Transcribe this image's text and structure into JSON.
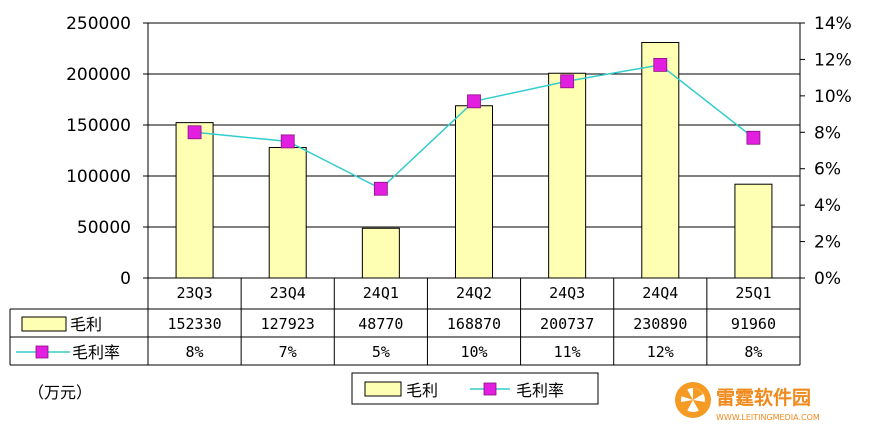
{
  "chart_data": {
    "type": "bar",
    "categories": [
      "23Q3",
      "23Q4",
      "24Q1",
      "24Q2",
      "24Q3",
      "24Q4",
      "25Q1"
    ],
    "series": [
      {
        "name": "毛利",
        "type": "bar",
        "axis": "left",
        "values": [
          152330,
          127923,
          48770,
          168870,
          200737,
          230890,
          91960
        ],
        "labels": [
          "152330",
          "127923",
          "48770",
          "168870",
          "200737",
          "230890",
          "91960"
        ],
        "color": "#ffffb4",
        "edge": "#000000"
      },
      {
        "name": "毛利率",
        "type": "line",
        "axis": "right",
        "values": [
          8,
          7.5,
          4.9,
          9.7,
          10.8,
          11.7,
          7.7
        ],
        "labels": [
          "8%",
          "7%",
          "5%",
          "10%",
          "11%",
          "12%",
          "8%"
        ],
        "color": "#33cccc",
        "marker_color": "#e21fe0"
      }
    ],
    "y_left": {
      "ylim": [
        0,
        250000
      ],
      "ticks": [
        "0",
        "50000",
        "100000",
        "150000",
        "200000",
        "250000"
      ]
    },
    "y_right": {
      "ylim": [
        0,
        14
      ],
      "ticks": [
        "0%",
        "2%",
        "4%",
        "6%",
        "8%",
        "10%",
        "12%",
        "14%"
      ]
    },
    "grid": true,
    "legend_position": "bottom",
    "unit_label": "（万元）"
  },
  "watermark": {
    "name": "雷霆软件园",
    "url": "WWW.LEITINGMEDIA.COM"
  }
}
